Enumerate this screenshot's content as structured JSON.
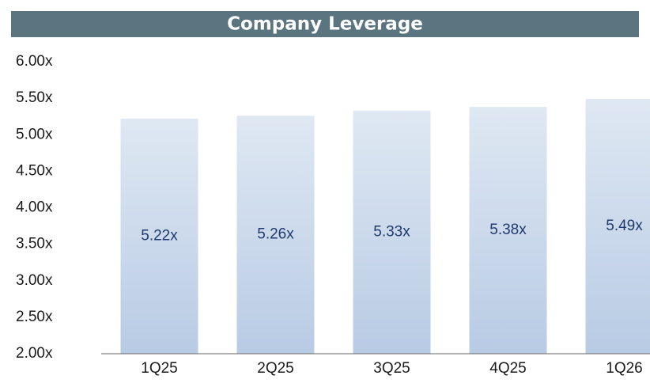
{
  "chart_data": {
    "type": "bar",
    "title": "Company Leverage",
    "categories": [
      "1Q25",
      "2Q25",
      "3Q25",
      "4Q25",
      "1Q26"
    ],
    "values": [
      5.22,
      5.26,
      5.33,
      5.38,
      5.49
    ],
    "value_labels": [
      "5.22x",
      "5.26x",
      "5.33x",
      "5.38x",
      "5.49x"
    ],
    "ylim": [
      2,
      6
    ],
    "yticks": [
      {
        "value": 2,
        "label": "2.00x"
      },
      {
        "value": 2.5,
        "label": "2.50x"
      },
      {
        "value": 3,
        "label": "3.00x"
      },
      {
        "value": 3.5,
        "label": "3.50x"
      },
      {
        "value": 4,
        "label": "4.00x"
      },
      {
        "value": 4.5,
        "label": "4.50x"
      },
      {
        "value": 5,
        "label": "5.00x"
      },
      {
        "value": 5.5,
        "label": "5.50x"
      },
      {
        "value": 6,
        "label": "6.00x"
      }
    ]
  }
}
